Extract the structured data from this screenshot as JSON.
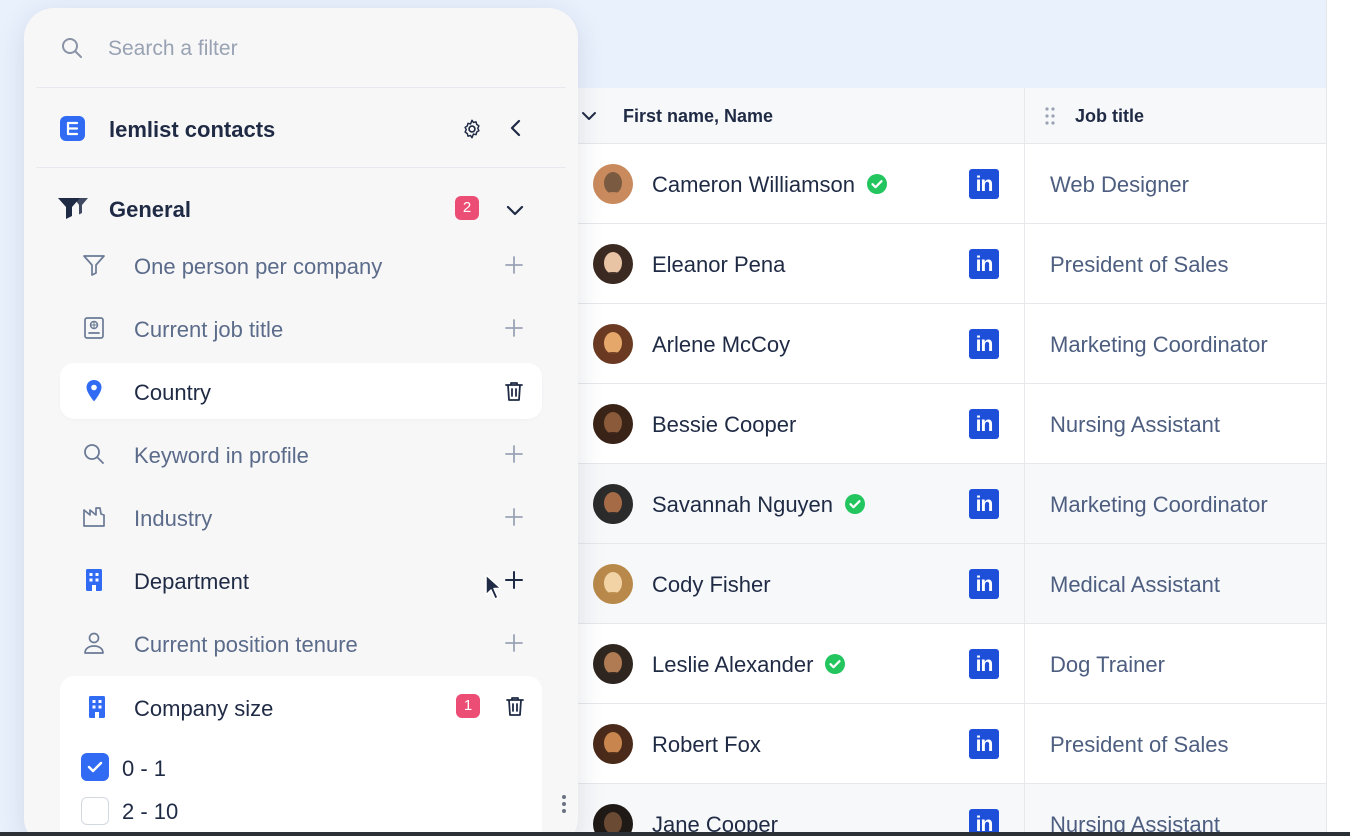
{
  "search": {
    "placeholder": "Search a filter"
  },
  "list": {
    "title": "lemlist contacts"
  },
  "section": {
    "title": "General",
    "badge": "2"
  },
  "filters": [
    {
      "label": "One person per company",
      "icon": "funnel-icon"
    },
    {
      "label": "Current job title",
      "icon": "id-badge-icon"
    },
    {
      "label": "Country",
      "icon": "map-pin-icon",
      "active": true
    },
    {
      "label": "Keyword in profile",
      "icon": "search-icon"
    },
    {
      "label": "Industry",
      "icon": "factory-icon"
    },
    {
      "label": "Department",
      "icon": "building-icon"
    },
    {
      "label": "Current position tenure",
      "icon": "user-icon"
    }
  ],
  "company_size": {
    "label": "Company size",
    "badge": "1",
    "options": [
      {
        "label": "0 - 1",
        "checked": true
      },
      {
        "label": "2 - 10",
        "checked": false
      }
    ]
  },
  "table": {
    "col_name": "First name, Name",
    "col_job": "Job title",
    "linkedin_text": "in",
    "rows": [
      {
        "name": "Cameron Williamson",
        "verified": true,
        "job": "Web Designer"
      },
      {
        "name": "Eleanor Pena",
        "verified": false,
        "job": "President of Sales"
      },
      {
        "name": "Arlene McCoy",
        "verified": false,
        "job": "Marketing Coordinator"
      },
      {
        "name": "Bessie Cooper",
        "verified": false,
        "job": "Nursing Assistant"
      },
      {
        "name": "Savannah Nguyen",
        "verified": true,
        "job": "Marketing Coordinator"
      },
      {
        "name": "Cody Fisher",
        "verified": false,
        "job": "Medical Assistant"
      },
      {
        "name": "Leslie Alexander",
        "verified": true,
        "job": "Dog Trainer"
      },
      {
        "name": "Robert Fox",
        "verified": false,
        "job": "President of Sales"
      },
      {
        "name": "Jane Cooper",
        "verified": false,
        "job": "Nursing Assistant"
      }
    ]
  },
  "colors": {
    "accent": "#316bf4",
    "badge": "#ec4d75",
    "verified": "#22c55e",
    "linkedin": "#1d4fd8"
  }
}
